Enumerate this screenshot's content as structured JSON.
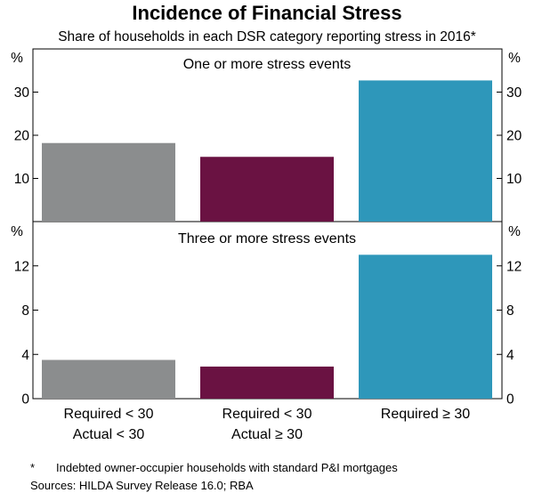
{
  "chart_data": {
    "type": "bar",
    "title": "Incidence of Financial Stress",
    "subtitle": "Share of households in each DSR category reporting stress in 2016*",
    "categories": [
      [
        "Required < 30",
        "Actual < 30"
      ],
      [
        "Required < 30",
        "Actual ≥ 30"
      ],
      [
        "Required ≥ 30"
      ]
    ],
    "colors": [
      "#8b8d8e",
      "#6a1242",
      "#2e97ba"
    ],
    "panels": [
      {
        "title": "One or more stress events",
        "unit": "%",
        "ylim": [
          0,
          40
        ],
        "ticks": [
          10,
          20,
          30
        ],
        "values": [
          18.2,
          15.0,
          32.7
        ]
      },
      {
        "title": "Three or more stress events",
        "unit": "%",
        "ylim": [
          0,
          16
        ],
        "ticks": [
          0,
          4,
          8,
          12
        ],
        "values": [
          3.5,
          2.9,
          13.0
        ]
      }
    ],
    "footnote": {
      "marker": "*",
      "text": "Indebted owner-occupier households with standard P&I mortgages"
    },
    "sources": "Sources: HILDA Survey Release 16.0; RBA"
  }
}
